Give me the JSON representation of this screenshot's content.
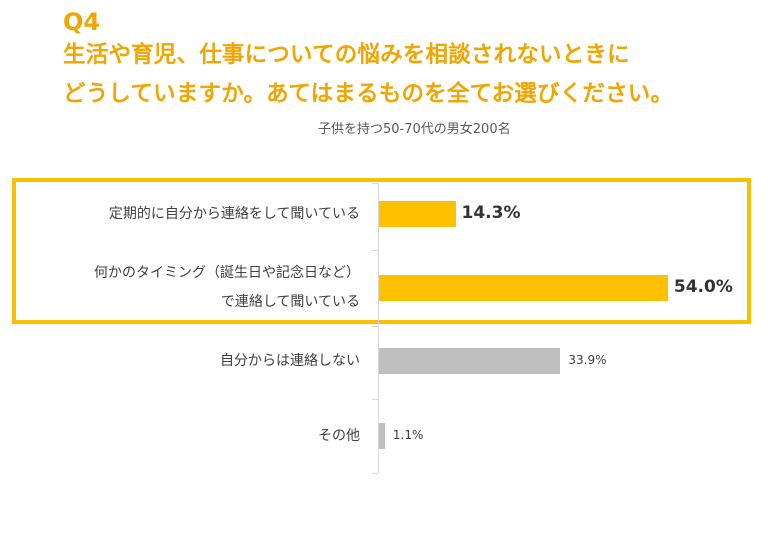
{
  "header": {
    "question_number": "Q4",
    "question_line1": "生活や育児、仕事についての悩みを相談されないときに",
    "question_line2": "どうしていますか。あてはまるものを全てお選びください。",
    "respondents": "子供を持つ50-70代の男女200名"
  },
  "colors": {
    "accent": "#f0a500",
    "highlight_bar": "#ffc000",
    "highlight_box": "#f8c000",
    "gray_bar": "#bfbfbf"
  },
  "chart_data": {
    "type": "bar",
    "orientation": "horizontal",
    "categories": [
      [
        "定期的に自分から連絡をして聞いている"
      ],
      [
        "何かのタイミング（誕生日や記念日など）",
        "で連絡して聞いている"
      ],
      [
        "自分からは連絡しない"
      ],
      [
        "その他"
      ]
    ],
    "values": [
      14.3,
      54.0,
      33.9,
      1.1
    ],
    "value_labels": [
      "14.3%",
      "54.0%",
      "33.9%",
      "1.1%"
    ],
    "highlighted": [
      true,
      true,
      false,
      false
    ],
    "xlim": [
      0,
      60
    ],
    "grid": false,
    "legend": "none"
  }
}
